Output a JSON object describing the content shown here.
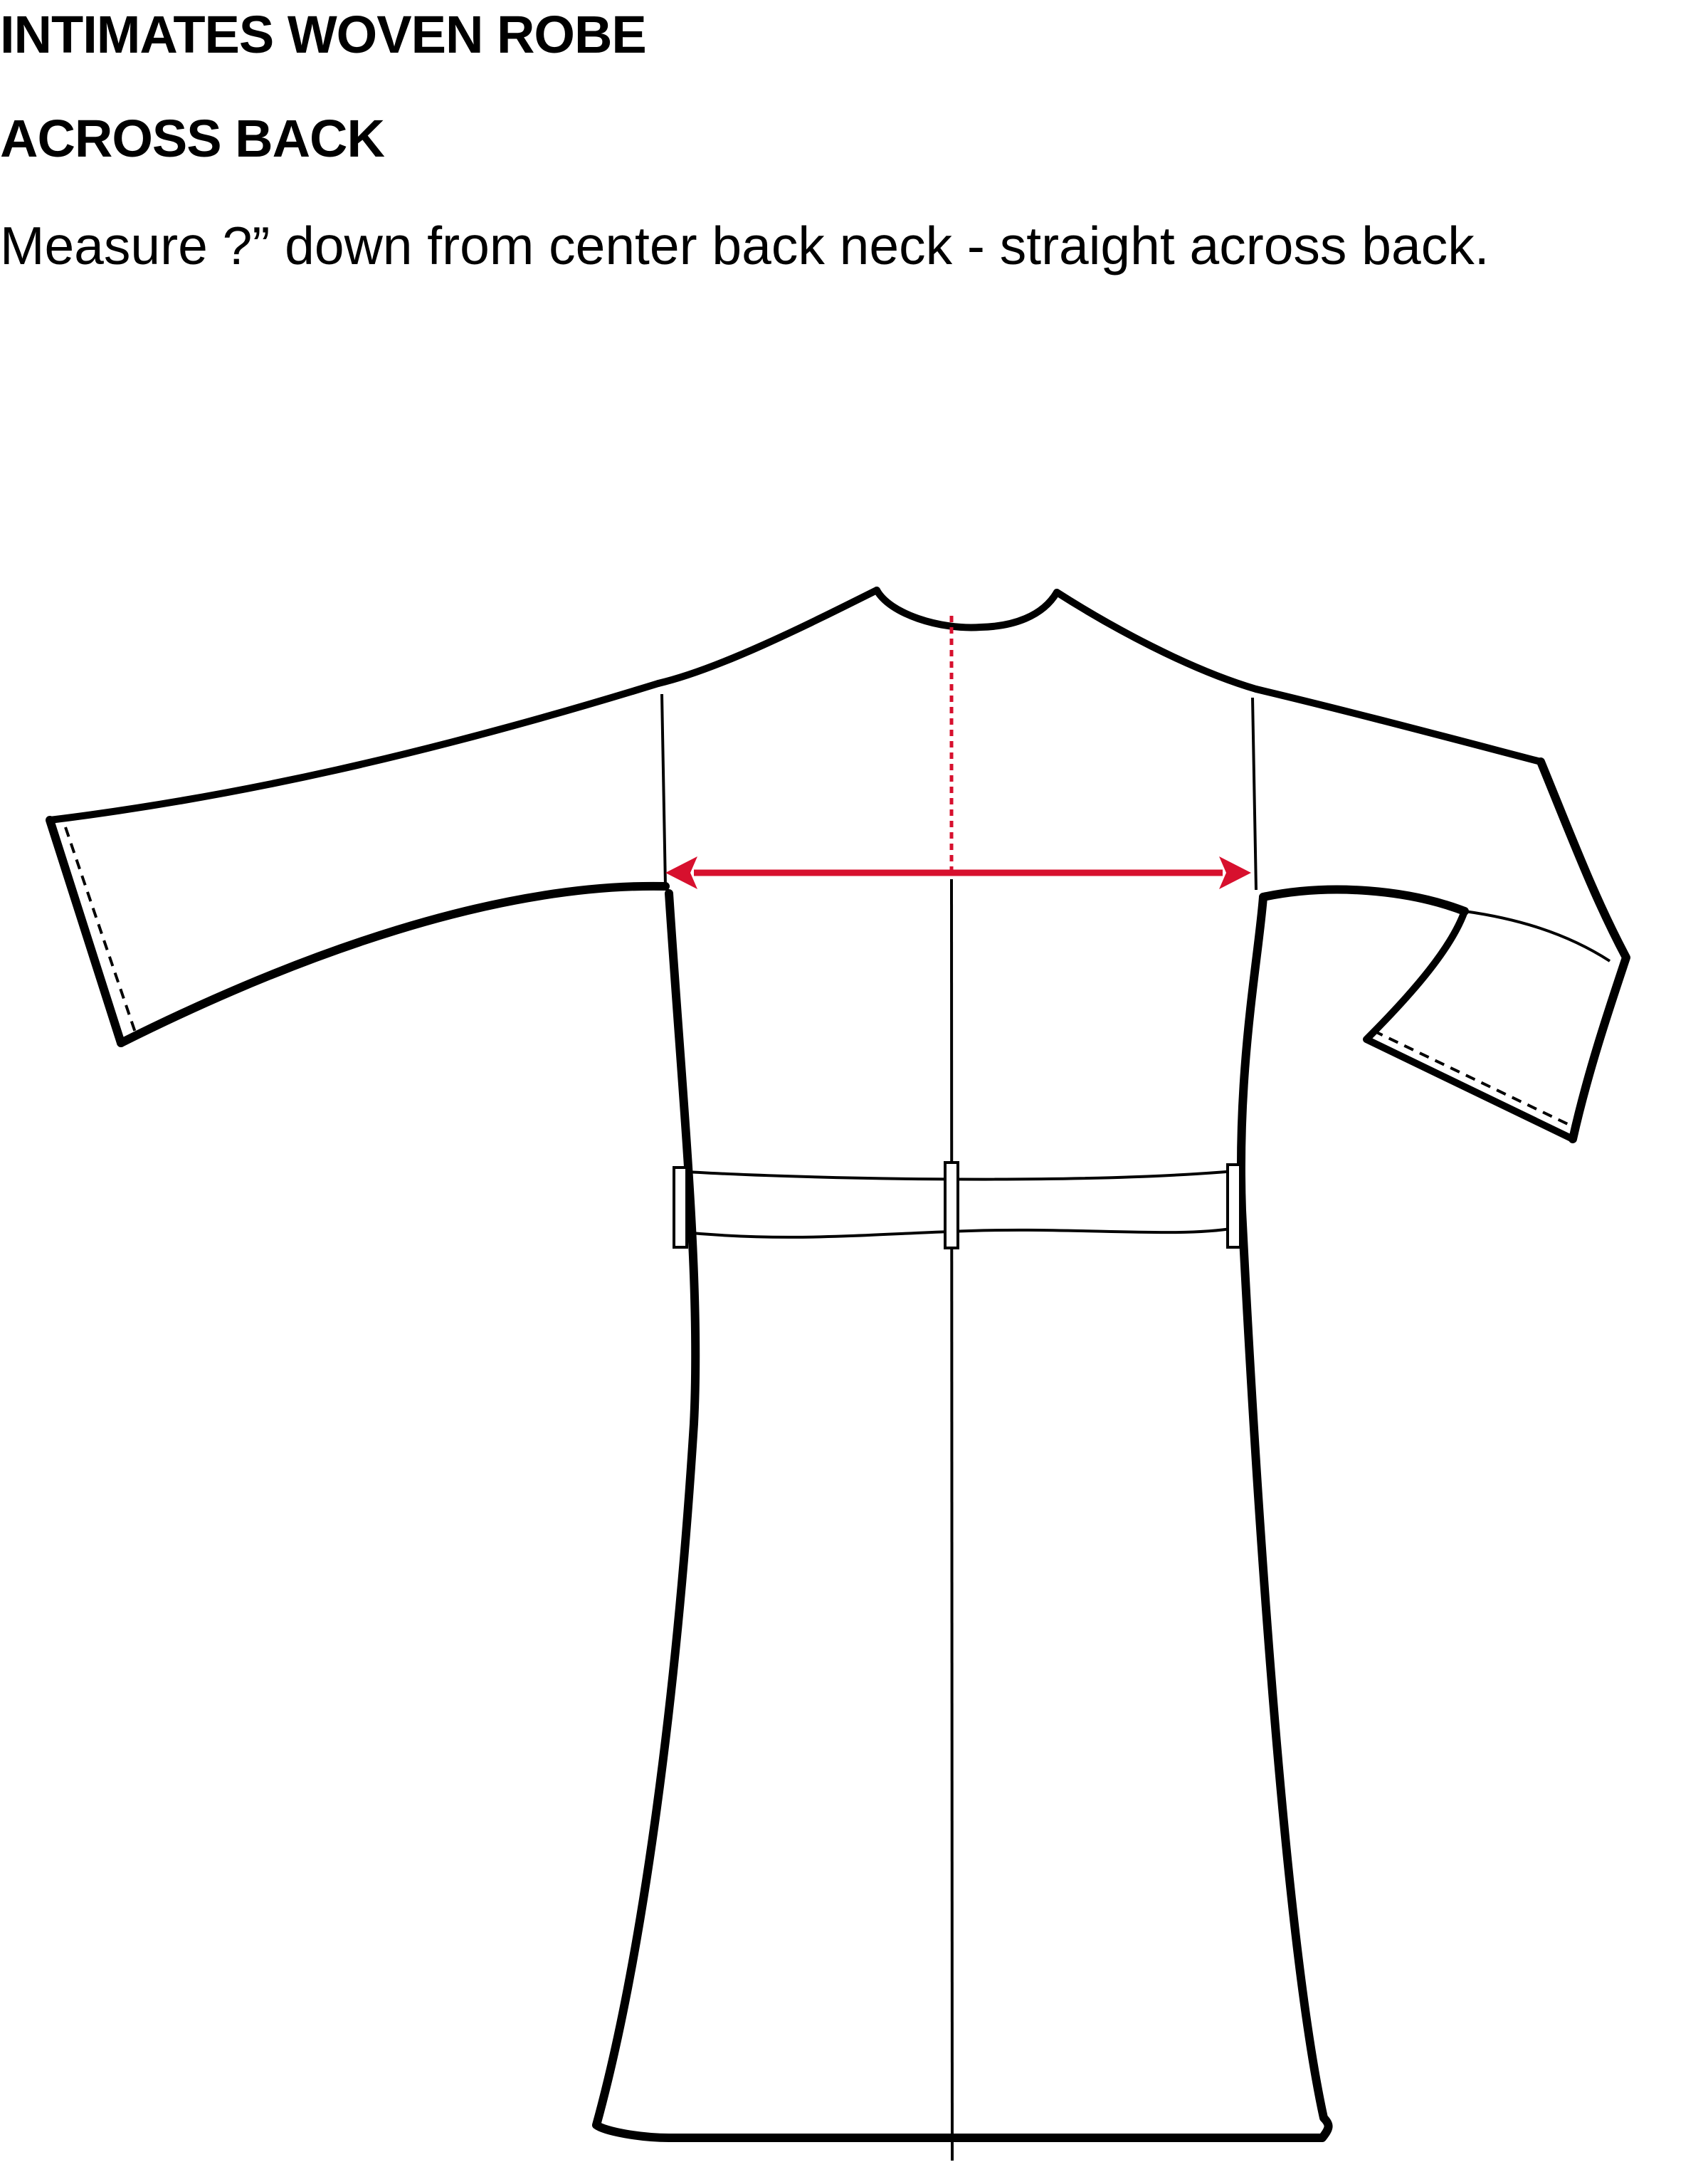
{
  "header": {
    "title": "INTIMATES WOVEN ROBE",
    "subtitle": "ACROSS BACK",
    "instruction": "Measure ?” down from center back neck - straight across back."
  },
  "diagram": {
    "garment": "robe-back-view",
    "measurement": "across-back",
    "colors": {
      "outline": "#000000",
      "measurement": "#d7102e",
      "fill": "#ffffff"
    }
  }
}
